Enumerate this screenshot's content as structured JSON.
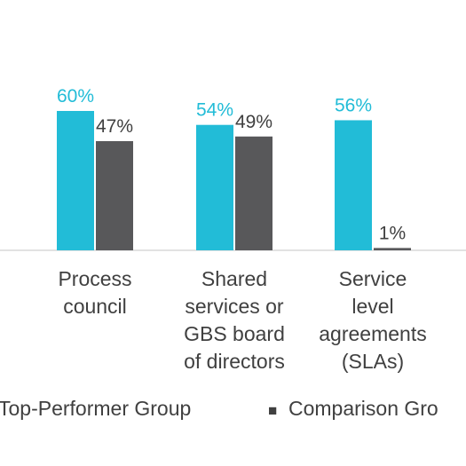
{
  "chart_data": {
    "type": "bar",
    "title": "",
    "xlabel": "",
    "ylabel": "",
    "ylim": [
      0,
      60
    ],
    "grid": false,
    "legend_position": "bottom",
    "categories": [
      [
        "Process",
        "council"
      ],
      [
        "Shared",
        "services or",
        "GBS board",
        "of directors"
      ],
      [
        "Service",
        "level",
        "agreements",
        "(SLAs)"
      ]
    ],
    "series": [
      {
        "name": "Top-Performer Group",
        "color": "#22bcd7",
        "values": [
          60,
          54,
          56
        ],
        "labels": [
          "60%",
          "54%",
          "56%"
        ]
      },
      {
        "name": "Comparison Group",
        "color": "#58585a",
        "values": [
          47,
          49,
          1
        ],
        "labels": [
          "47%",
          "49%",
          "1%"
        ]
      }
    ],
    "legend": {
      "items": [
        {
          "marker": "",
          "label": "Top-Performer Group"
        },
        {
          "marker": "■",
          "label": "Comparison Gro"
        }
      ]
    }
  }
}
